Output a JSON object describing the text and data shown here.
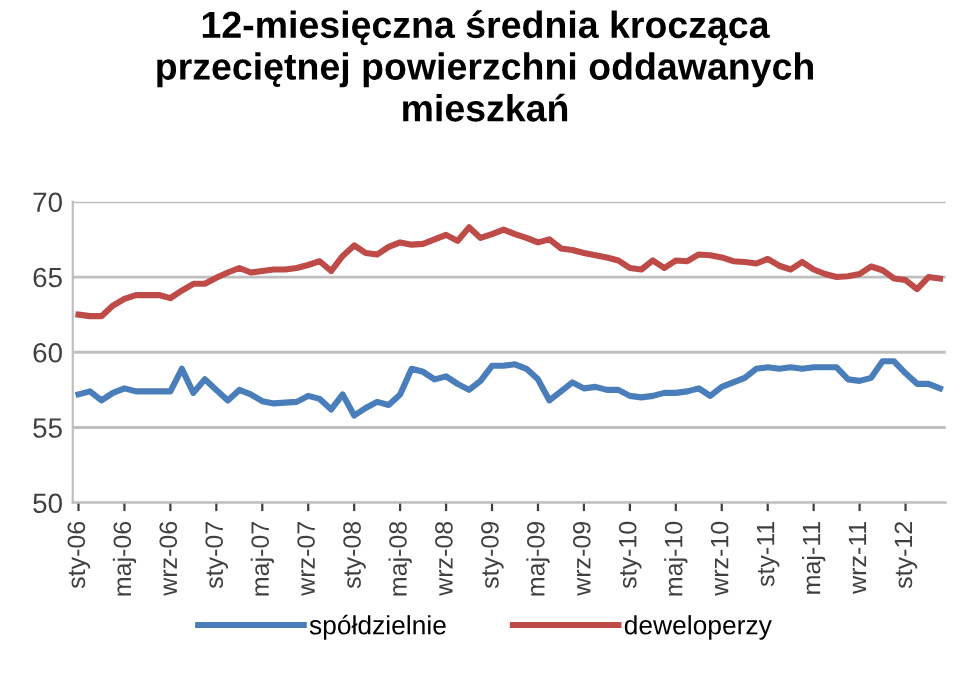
{
  "chart_data": {
    "type": "line",
    "title": "12-miesięczna średnia krocząca\nprzeciętnej powierzchni oddawanych\nmieszkań",
    "categories": [
      "sty-06",
      null,
      null,
      null,
      "maj-06",
      null,
      null,
      null,
      "wrz-06",
      null,
      null,
      null,
      "sty-07",
      null,
      null,
      null,
      "maj-07",
      null,
      null,
      null,
      "wrz-07",
      null,
      null,
      null,
      "sty-08",
      null,
      null,
      null,
      "maj-08",
      null,
      null,
      null,
      "wrz-08",
      null,
      null,
      null,
      "sty-09",
      null,
      null,
      null,
      "maj-09",
      null,
      null,
      null,
      "wrz-09",
      null,
      null,
      null,
      "sty-10",
      null,
      null,
      null,
      "maj-10",
      null,
      null,
      null,
      "wrz-10",
      null,
      null,
      null,
      "sty-11",
      null,
      null,
      null,
      "maj-11",
      null,
      null,
      null,
      "wrz-11",
      null,
      null,
      null,
      "sty-12",
      null,
      null,
      null
    ],
    "series": [
      {
        "name": "spółdzielnie",
        "color": "#4a7ebb",
        "values": [
          57.2,
          57.4,
          56.8,
          57.3,
          57.6,
          57.4,
          57.4,
          57.4,
          57.4,
          58.9,
          57.3,
          58.2,
          57.5,
          56.8,
          57.5,
          57.2,
          56.75,
          56.6,
          56.65,
          56.7,
          57.1,
          56.9,
          56.2,
          57.2,
          55.8,
          56.3,
          56.7,
          56.5,
          57.2,
          58.9,
          58.7,
          58.2,
          58.4,
          57.9,
          57.5,
          58.1,
          59.1,
          59.1,
          59.2,
          58.9,
          58.2,
          56.8,
          57.4,
          58.0,
          57.6,
          57.7,
          57.5,
          57.5,
          57.1,
          57.0,
          57.1,
          57.3,
          57.3,
          57.4,
          57.6,
          57.1,
          57.7,
          58.0,
          58.3,
          58.9,
          59.0,
          58.9,
          59.0,
          58.9,
          59.0,
          59.0,
          59.0,
          58.2,
          58.1,
          58.3,
          59.4,
          59.4,
          58.6,
          57.9,
          57.9,
          57.6
        ]
      },
      {
        "name": "deweloperzy",
        "color": "#be4b48",
        "values": [
          62.5,
          62.4,
          62.4,
          63.1,
          63.55,
          63.8,
          63.8,
          63.8,
          63.6,
          64.1,
          64.55,
          64.55,
          64.95,
          65.3,
          65.6,
          65.3,
          65.4,
          65.5,
          65.5,
          65.6,
          65.8,
          66.05,
          65.4,
          66.4,
          67.1,
          66.6,
          66.5,
          67.0,
          67.3,
          67.15,
          67.2,
          67.5,
          67.8,
          67.4,
          68.3,
          67.6,
          67.85,
          68.15,
          67.85,
          67.6,
          67.3,
          67.5,
          66.9,
          66.8,
          66.6,
          66.45,
          66.3,
          66.1,
          65.6,
          65.5,
          66.1,
          65.6,
          66.1,
          66.05,
          66.5,
          66.45,
          66.3,
          66.05,
          66.0,
          65.9,
          66.2,
          65.75,
          65.5,
          66.0,
          65.5,
          65.2,
          65.0,
          65.05,
          65.2,
          65.7,
          65.45,
          64.9,
          64.8,
          64.2,
          65.0,
          64.9
        ]
      }
    ],
    "ylim": [
      50,
      70
    ],
    "yticks": [
      50,
      55,
      60,
      65,
      70
    ],
    "grid": "y",
    "legend": "bottom",
    "marker": "none",
    "line_style": "solid"
  }
}
